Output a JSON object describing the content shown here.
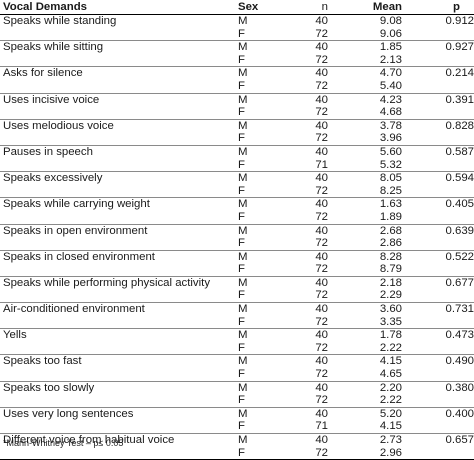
{
  "table": {
    "headers": {
      "demand": "Vocal Demands",
      "sex": "Sex",
      "n": "n",
      "mean": "Mean",
      "p": "p"
    },
    "rows": [
      {
        "demand": "Speaks while standing",
        "p": "0.912",
        "m": {
          "sex": "M",
          "n": "40",
          "mean": "9.08"
        },
        "f": {
          "sex": "F",
          "n": "72",
          "mean": "9.06"
        }
      },
      {
        "demand": "Speaks while sitting",
        "p": "0.927",
        "m": {
          "sex": "M",
          "n": "40",
          "mean": "1.85"
        },
        "f": {
          "sex": "F",
          "n": "72",
          "mean": "2.13"
        }
      },
      {
        "demand": "Asks for silence",
        "p": "0.214",
        "m": {
          "sex": "M",
          "n": "40",
          "mean": "4.70"
        },
        "f": {
          "sex": "F",
          "n": "72",
          "mean": "5.40"
        }
      },
      {
        "demand": "Uses incisive voice",
        "p": "0.391",
        "m": {
          "sex": "M",
          "n": "40",
          "mean": "4.23"
        },
        "f": {
          "sex": "F",
          "n": "72",
          "mean": "4.68"
        }
      },
      {
        "demand": "Uses melodious voice",
        "p": "0.828",
        "m": {
          "sex": "M",
          "n": "40",
          "mean": "3.78"
        },
        "f": {
          "sex": "F",
          "n": "72",
          "mean": "3.96"
        }
      },
      {
        "demand": "Pauses in speech",
        "p": "0.587",
        "m": {
          "sex": "M",
          "n": "40",
          "mean": "5.60"
        },
        "f": {
          "sex": "F",
          "n": "71",
          "mean": "5.32"
        }
      },
      {
        "demand": "Speaks excessively",
        "p": "0.594",
        "m": {
          "sex": "M",
          "n": "40",
          "mean": "8.05"
        },
        "f": {
          "sex": "F",
          "n": "72",
          "mean": "8.25"
        }
      },
      {
        "demand": "Speaks while carrying weight",
        "p": "0.405",
        "m": {
          "sex": "M",
          "n": "40",
          "mean": "1.63"
        },
        "f": {
          "sex": "F",
          "n": "72",
          "mean": "1.89"
        }
      },
      {
        "demand": "Speaks in open environment",
        "p": "0.639",
        "m": {
          "sex": "M",
          "n": "40",
          "mean": "2.68"
        },
        "f": {
          "sex": "F",
          "n": "72",
          "mean": "2.86"
        }
      },
      {
        "demand": "Speaks in closed environment",
        "p": "0.522",
        "m": {
          "sex": "M",
          "n": "40",
          "mean": "8.28"
        },
        "f": {
          "sex": "F",
          "n": "72",
          "mean": "8.79"
        }
      },
      {
        "demand": "Speaks while performing physical activity",
        "p": "0.677",
        "m": {
          "sex": "M",
          "n": "40",
          "mean": "2.18"
        },
        "f": {
          "sex": "F",
          "n": "72",
          "mean": "2.29"
        }
      },
      {
        "demand": "Air-conditioned environment",
        "p": "0.731",
        "m": {
          "sex": "M",
          "n": "40",
          "mean": "3.60"
        },
        "f": {
          "sex": "F",
          "n": "72",
          "mean": "3.35"
        }
      },
      {
        "demand": "Yells",
        "p": "0.473",
        "m": {
          "sex": "M",
          "n": "40",
          "mean": "1.78"
        },
        "f": {
          "sex": "F",
          "n": "72",
          "mean": "2.22"
        }
      },
      {
        "demand": "Speaks too fast",
        "p": "0.490",
        "m": {
          "sex": "M",
          "n": "40",
          "mean": "4.15"
        },
        "f": {
          "sex": "F",
          "n": "72",
          "mean": "4.65"
        }
      },
      {
        "demand": "Speaks too slowly",
        "p": "0.380",
        "m": {
          "sex": "M",
          "n": "40",
          "mean": "2.20"
        },
        "f": {
          "sex": "F",
          "n": "72",
          "mean": "2.22"
        }
      },
      {
        "demand": "Uses very long sentences",
        "p": "0.400",
        "m": {
          "sex": "M",
          "n": "40",
          "mean": "5.20"
        },
        "f": {
          "sex": "F",
          "n": "71",
          "mean": "4.15"
        }
      },
      {
        "demand": "Different voice from habitual voice",
        "p": "0.657",
        "m": {
          "sex": "M",
          "n": "40",
          "mean": "2.73"
        },
        "f": {
          "sex": "F",
          "n": "72",
          "mean": "2.96"
        }
      }
    ]
  },
  "footnote": "*Mann-Whitney Test – p≤ 0.05"
}
